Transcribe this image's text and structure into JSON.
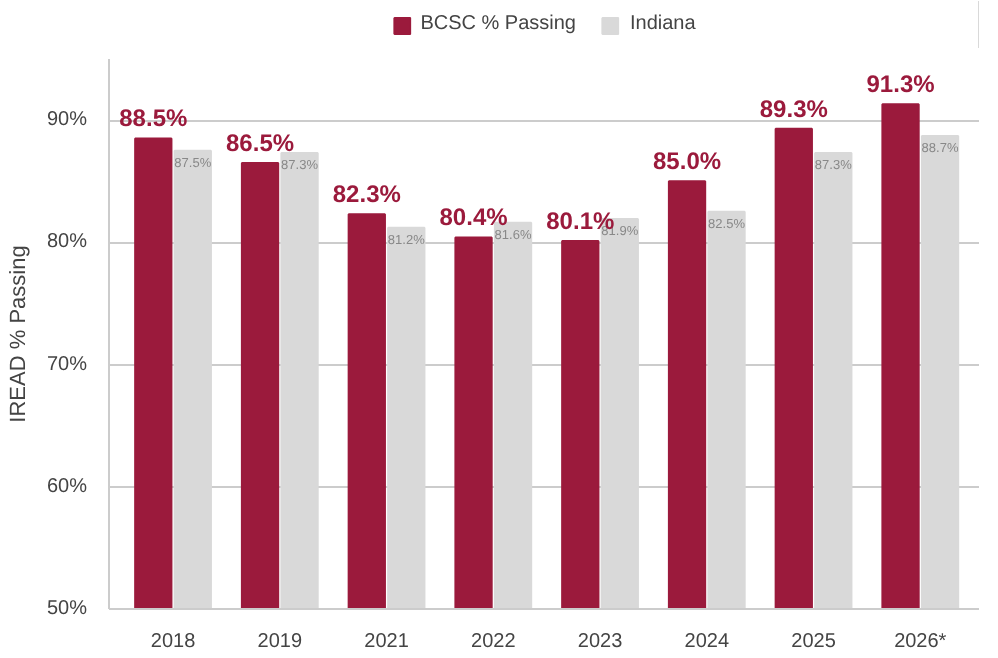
{
  "chart_data": {
    "type": "bar",
    "ylabel": "IREAD % Passing",
    "categories": [
      "2018",
      "2019",
      "2021",
      "2022",
      "2023",
      "2024",
      "2025",
      "2026*"
    ],
    "series": [
      {
        "name": "BCSC % Passing",
        "color": "#9b1a3c",
        "values": [
          88.5,
          86.5,
          82.3,
          80.4,
          80.1,
          85.0,
          89.3,
          91.3
        ],
        "value_labels": [
          "88.5%",
          "86.5%",
          "82.3%",
          "80.4%",
          "80.1%",
          "85.0%",
          "89.3%",
          "91.3%"
        ]
      },
      {
        "name": "Indiana",
        "color": "#d9d9d9",
        "values": [
          87.5,
          87.3,
          81.2,
          81.6,
          81.9,
          82.5,
          87.3,
          88.7
        ],
        "value_labels": [
          "87.5%",
          "87.3%",
          "81.2%",
          "81.6%",
          "81.9%",
          "82.5%",
          "87.3%",
          "88.7%"
        ]
      }
    ],
    "ylim": [
      50,
      95
    ],
    "yticks": [
      {
        "value": 50,
        "label": "50%"
      },
      {
        "value": 60,
        "label": "60%"
      },
      {
        "value": 70,
        "label": "70%"
      },
      {
        "value": 80,
        "label": "80%"
      },
      {
        "value": 90,
        "label": "90%"
      }
    ],
    "grid": "y",
    "legend": "top"
  }
}
